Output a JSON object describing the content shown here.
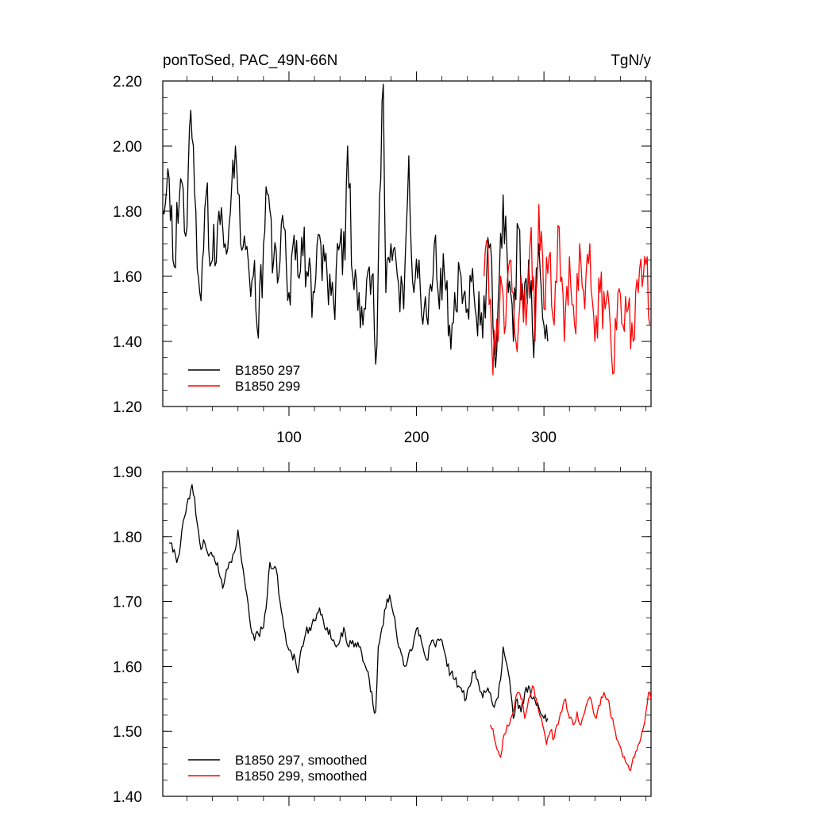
{
  "figure": {
    "title_left": "ponToSed, PAC_49N-66N",
    "title_right": "TgN/y"
  },
  "chart_data": [
    {
      "type": "line",
      "panel": "top",
      "title": "ponToSed, PAC_49N-66N",
      "units": "TgN/y",
      "xlim": [
        1,
        384
      ],
      "ylim": [
        1.2,
        2.2
      ],
      "x_ticks": [
        100,
        200,
        300
      ],
      "x_tick_labels": [
        "100",
        "200",
        "300"
      ],
      "y_ticks": [
        1.2,
        1.4,
        1.6,
        1.8,
        2.0,
        2.2
      ],
      "y_tick_labels": [
        "1.20",
        "1.40",
        "1.60",
        "1.80",
        "2.00",
        "2.20"
      ],
      "legend_position": "bottom-left",
      "series": [
        {
          "name": "B1850 297",
          "color": "#000000",
          "x_start": 1,
          "x_step": 1,
          "anchor_points": [
            [
              1,
              1.8
            ],
            [
              5,
              1.93
            ],
            [
              10,
              1.63
            ],
            [
              15,
              1.9
            ],
            [
              20,
              1.75
            ],
            [
              23,
              2.11
            ],
            [
              27,
              1.8
            ],
            [
              30,
              1.55
            ],
            [
              35,
              1.85
            ],
            [
              40,
              1.65
            ],
            [
              45,
              1.8
            ],
            [
              50,
              1.7
            ],
            [
              55,
              1.87
            ],
            [
              58,
              2.0
            ],
            [
              62,
              1.7
            ],
            [
              68,
              1.65
            ],
            [
              72,
              1.6
            ],
            [
              76,
              1.41
            ],
            [
              80,
              1.7
            ],
            [
              84,
              1.85
            ],
            [
              88,
              1.65
            ],
            [
              92,
              1.6
            ],
            [
              96,
              1.75
            ],
            [
              100,
              1.55
            ],
            [
              105,
              1.65
            ],
            [
              110,
              1.72
            ],
            [
              115,
              1.6
            ],
            [
              120,
              1.55
            ],
            [
              125,
              1.7
            ],
            [
              130,
              1.6
            ],
            [
              135,
              1.52
            ],
            [
              140,
              1.7
            ],
            [
              144,
              1.65
            ],
            [
              146,
              2.0
            ],
            [
              150,
              1.6
            ],
            [
              155,
              1.55
            ],
            [
              160,
              1.5
            ],
            [
              165,
              1.6
            ],
            [
              168,
              1.33
            ],
            [
              172,
              1.9
            ],
            [
              174,
              2.19
            ],
            [
              176,
              1.55
            ],
            [
              180,
              1.7
            ],
            [
              185,
              1.6
            ],
            [
              190,
              1.5
            ],
            [
              194,
              1.97
            ],
            [
              198,
              1.55
            ],
            [
              202,
              1.65
            ],
            [
              206,
              1.5
            ],
            [
              210,
              1.55
            ],
            [
              214,
              1.7
            ],
            [
              218,
              1.5
            ],
            [
              222,
              1.6
            ],
            [
              226,
              1.45
            ],
            [
              230,
              1.55
            ],
            [
              235,
              1.6
            ],
            [
              240,
              1.5
            ],
            [
              245,
              1.55
            ],
            [
              250,
              1.45
            ],
            [
              255,
              1.6
            ],
            [
              258,
              1.7
            ],
            [
              262,
              1.32
            ],
            [
              265,
              1.6
            ],
            [
              268,
              1.85
            ],
            [
              272,
              1.55
            ],
            [
              276,
              1.4
            ],
            [
              280,
              1.75
            ],
            [
              284,
              1.5
            ],
            [
              288,
              1.65
            ],
            [
              292,
              1.35
            ],
            [
              296,
              1.7
            ],
            [
              300,
              1.45
            ],
            [
              303,
              1.4
            ]
          ],
          "values": []
        },
        {
          "name": "B1850 299",
          "color": "#ff0000",
          "x_start": 253,
          "x_step": 1,
          "anchor_points": [
            [
              253,
              1.6
            ],
            [
              256,
              1.7
            ],
            [
              259,
              1.4
            ],
            [
              262,
              1.36
            ],
            [
              266,
              1.6
            ],
            [
              270,
              1.45
            ],
            [
              274,
              1.65
            ],
            [
              278,
              1.4
            ],
            [
              282,
              1.6
            ],
            [
              286,
              1.45
            ],
            [
              290,
              1.75
            ],
            [
              293,
              1.4
            ],
            [
              296,
              1.82
            ],
            [
              300,
              1.5
            ],
            [
              304,
              1.66
            ],
            [
              308,
              1.45
            ],
            [
              312,
              1.75
            ],
            [
              316,
              1.4
            ],
            [
              320,
              1.66
            ],
            [
              324,
              1.45
            ],
            [
              328,
              1.7
            ],
            [
              332,
              1.5
            ],
            [
              336,
              1.7
            ],
            [
              340,
              1.4
            ],
            [
              344,
              1.55
            ],
            [
              348,
              1.5
            ],
            [
              352,
              1.45
            ],
            [
              354,
              1.3
            ],
            [
              358,
              1.55
            ],
            [
              362,
              1.45
            ],
            [
              366,
              1.5
            ],
            [
              370,
              1.4
            ],
            [
              374,
              1.55
            ],
            [
              378,
              1.6
            ],
            [
              381,
              1.66
            ],
            [
              383,
              1.45
            ]
          ],
          "values": []
        }
      ]
    },
    {
      "type": "line",
      "panel": "bottom",
      "xlim": [
        1,
        384
      ],
      "ylim": [
        1.4,
        1.9
      ],
      "x_ticks": [
        100,
        200,
        300
      ],
      "y_ticks": [
        1.4,
        1.5,
        1.6,
        1.7,
        1.8,
        1.9
      ],
      "y_tick_labels": [
        "1.40",
        "1.50",
        "1.60",
        "1.70",
        "1.80",
        "1.90"
      ],
      "legend_position": "bottom-left",
      "series": [
        {
          "name": "B1850 297, smoothed",
          "color": "#000000",
          "x_start": 6,
          "x_step": 1,
          "anchor_points": [
            [
              6,
              1.79
            ],
            [
              10,
              1.78
            ],
            [
              12,
              1.76
            ],
            [
              15,
              1.79
            ],
            [
              18,
              1.83
            ],
            [
              20,
              1.85
            ],
            [
              24,
              1.88
            ],
            [
              26,
              1.86
            ],
            [
              28,
              1.82
            ],
            [
              31,
              1.78
            ],
            [
              34,
              1.79
            ],
            [
              37,
              1.77
            ],
            [
              40,
              1.77
            ],
            [
              44,
              1.76
            ],
            [
              48,
              1.72
            ],
            [
              52,
              1.75
            ],
            [
              55,
              1.76
            ],
            [
              58,
              1.78
            ],
            [
              60,
              1.81
            ],
            [
              63,
              1.76
            ],
            [
              67,
              1.71
            ],
            [
              70,
              1.66
            ],
            [
              73,
              1.64
            ],
            [
              76,
              1.65
            ],
            [
              80,
              1.66
            ],
            [
              83,
              1.71
            ],
            [
              85,
              1.76
            ],
            [
              87,
              1.75
            ],
            [
              90,
              1.75
            ],
            [
              93,
              1.7
            ],
            [
              96,
              1.66
            ],
            [
              99,
              1.63
            ],
            [
              102,
              1.62
            ],
            [
              105,
              1.61
            ],
            [
              107,
              1.59
            ],
            [
              110,
              1.63
            ],
            [
              113,
              1.65
            ],
            [
              116,
              1.66
            ],
            [
              120,
              1.67
            ],
            [
              124,
              1.69
            ],
            [
              127,
              1.67
            ],
            [
              130,
              1.66
            ],
            [
              134,
              1.64
            ],
            [
              137,
              1.63
            ],
            [
              140,
              1.64
            ],
            [
              143,
              1.66
            ],
            [
              147,
              1.63
            ],
            [
              150,
              1.64
            ],
            [
              153,
              1.63
            ],
            [
              156,
              1.63
            ],
            [
              160,
              1.6
            ],
            [
              163,
              1.58
            ],
            [
              166,
              1.54
            ],
            [
              168,
              1.53
            ],
            [
              170,
              1.63
            ],
            [
              173,
              1.66
            ],
            [
              176,
              1.69
            ],
            [
              179,
              1.71
            ],
            [
              182,
              1.68
            ],
            [
              185,
              1.64
            ],
            [
              188,
              1.62
            ],
            [
              191,
              1.6
            ],
            [
              194,
              1.62
            ],
            [
              198,
              1.64
            ],
            [
              201,
              1.66
            ],
            [
              205,
              1.63
            ],
            [
              208,
              1.61
            ],
            [
              212,
              1.64
            ],
            [
              215,
              1.63
            ],
            [
              218,
              1.64
            ],
            [
              221,
              1.63
            ],
            [
              224,
              1.6
            ],
            [
              227,
              1.59
            ],
            [
              230,
              1.58
            ],
            [
              233,
              1.57
            ],
            [
              236,
              1.56
            ],
            [
              239,
              1.55
            ],
            [
              242,
              1.57
            ],
            [
              245,
              1.59
            ],
            [
              248,
              1.58
            ],
            [
              251,
              1.56
            ],
            [
              254,
              1.56
            ],
            [
              257,
              1.56
            ],
            [
              260,
              1.54
            ],
            [
              263,
              1.55
            ],
            [
              266,
              1.58
            ],
            [
              268,
              1.63
            ],
            [
              270,
              1.61
            ],
            [
              273,
              1.58
            ],
            [
              276,
              1.52
            ],
            [
              279,
              1.55
            ],
            [
              282,
              1.53
            ],
            [
              285,
              1.56
            ],
            [
              288,
              1.57
            ],
            [
              291,
              1.55
            ],
            [
              294,
              1.54
            ],
            [
              297,
              1.53
            ],
            [
              300,
              1.52
            ],
            [
              303,
              1.52
            ]
          ],
          "values": []
        },
        {
          "name": "B1850 299, smoothed",
          "color": "#ff0000",
          "x_start": 258,
          "x_step": 1,
          "anchor_points": [
            [
              258,
              1.51
            ],
            [
              261,
              1.49
            ],
            [
              264,
              1.47
            ],
            [
              266,
              1.46
            ],
            [
              268,
              1.49
            ],
            [
              271,
              1.51
            ],
            [
              274,
              1.52
            ],
            [
              277,
              1.54
            ],
            [
              280,
              1.56
            ],
            [
              283,
              1.55
            ],
            [
              285,
              1.52
            ],
            [
              288,
              1.55
            ],
            [
              291,
              1.57
            ],
            [
              294,
              1.55
            ],
            [
              296,
              1.53
            ],
            [
              299,
              1.51
            ],
            [
              302,
              1.48
            ],
            [
              305,
              1.5
            ],
            [
              308,
              1.49
            ],
            [
              311,
              1.51
            ],
            [
              314,
              1.53
            ],
            [
              317,
              1.55
            ],
            [
              320,
              1.52
            ],
            [
              323,
              1.51
            ],
            [
              326,
              1.53
            ],
            [
              329,
              1.51
            ],
            [
              332,
              1.53
            ],
            [
              335,
              1.55
            ],
            [
              338,
              1.54
            ],
            [
              341,
              1.52
            ],
            [
              344,
              1.54
            ],
            [
              347,
              1.56
            ],
            [
              350,
              1.55
            ],
            [
              353,
              1.52
            ],
            [
              356,
              1.5
            ],
            [
              359,
              1.48
            ],
            [
              362,
              1.46
            ],
            [
              365,
              1.45
            ],
            [
              368,
              1.44
            ],
            [
              371,
              1.46
            ],
            [
              374,
              1.48
            ],
            [
              377,
              1.5
            ],
            [
              380,
              1.53
            ],
            [
              382,
              1.56
            ],
            [
              384,
              1.55
            ]
          ],
          "values": []
        }
      ]
    }
  ]
}
